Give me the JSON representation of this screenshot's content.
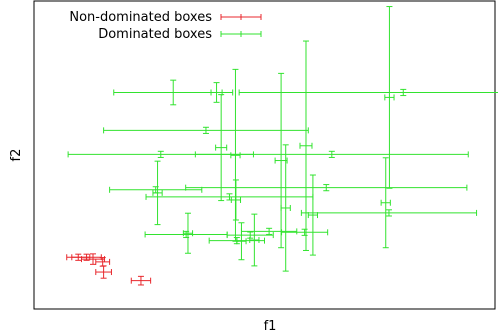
{
  "chart_data": {
    "type": "scatter",
    "xlabel": "f1",
    "ylabel": "f2",
    "xlim": [
      0,
      100
    ],
    "ylim": [
      0,
      100
    ],
    "grid": false,
    "legend_placement": "top-left",
    "series": [
      {
        "name": "Non-dominated boxes",
        "color": "#e8272c",
        "boxes": [
          {
            "x": 9.6,
            "xerr": 2.5,
            "y": 16.8,
            "yerr": 1.0
          },
          {
            "x": 11.4,
            "xerr": 3.2,
            "y": 16.8,
            "yerr": 1.0
          },
          {
            "x": 12.8,
            "xerr": 2.5,
            "y": 16.2,
            "yerr": 1.7
          },
          {
            "x": 14.9,
            "xerr": 1.5,
            "y": 15.3,
            "yerr": 1.4
          },
          {
            "x": 15.1,
            "xerr": 1.7,
            "y": 12.0,
            "yerr": 2.0
          },
          {
            "x": 23.2,
            "xerr": 2.1,
            "y": 9.2,
            "yerr": 1.4
          }
        ]
      },
      {
        "name": "Dominated boxes",
        "color": "#32e32f",
        "boxes": [
          {
            "x": 30.2,
            "xerr": 12.9,
            "y": 70.3,
            "yerr": 4.0
          },
          {
            "x": 39.6,
            "xerr": 1.2,
            "y": 70.3,
            "yerr": 3.2
          },
          {
            "x": 37.3,
            "xerr": 22.2,
            "y": 58.0,
            "yerr": 1.0
          },
          {
            "x": 27.5,
            "xerr": 20.1,
            "y": 50.2,
            "yerr": 1.0
          },
          {
            "x": 43.7,
            "xerr": 1.0,
            "y": 49.9,
            "yerr": 27.9
          },
          {
            "x": 40.6,
            "xerr": 1.2,
            "y": 52.4,
            "yerr": 17.2
          },
          {
            "x": 53.6,
            "xerr": 1.3,
            "y": 48.2,
            "yerr": 28.3
          },
          {
            "x": 59.0,
            "xerr": 1.3,
            "y": 53.0,
            "yerr": 34.0
          },
          {
            "x": 77.1,
            "xerr": 1.0,
            "y": 68.7,
            "yerr": 29.5
          },
          {
            "x": 80.1,
            "xerr": 35.6,
            "y": 70.3,
            "yerr": 1.0
          },
          {
            "x": 64.6,
            "xerr": 29.6,
            "y": 50.2,
            "yerr": 1.0
          },
          {
            "x": 26.8,
            "xerr": 1.0,
            "y": 37.7,
            "yerr": 10.3
          },
          {
            "x": 26.4,
            "xerr": 10.0,
            "y": 38.7,
            "yerr": 1.0
          },
          {
            "x": 42.4,
            "xerr": 18.1,
            "y": 36.4,
            "yerr": 1.0
          },
          {
            "x": 63.4,
            "xerr": 30.5,
            "y": 39.4,
            "yerr": 1.0
          },
          {
            "x": 76.3,
            "xerr": 1.0,
            "y": 34.5,
            "yerr": 14.6
          },
          {
            "x": 77.0,
            "xerr": 19.0,
            "y": 31.2,
            "yerr": 1.0
          },
          {
            "x": 43.8,
            "xerr": 1.0,
            "y": 35.4,
            "yerr": 6.5
          },
          {
            "x": 33.4,
            "xerr": 1.0,
            "y": 24.6,
            "yerr": 6.5
          },
          {
            "x": 33.0,
            "xerr": 8.9,
            "y": 24.2,
            "yerr": 1.0
          },
          {
            "x": 44.0,
            "xerr": 6.0,
            "y": 22.2,
            "yerr": 1.0
          },
          {
            "x": 45.0,
            "xerr": 1.0,
            "y": 22.0,
            "yerr": 6.0
          },
          {
            "x": 46.9,
            "xerr": 5.0,
            "y": 24.0,
            "yerr": 1.0
          },
          {
            "x": 47.8,
            "xerr": 1.0,
            "y": 22.4,
            "yerr": 8.4
          },
          {
            "x": 51.0,
            "xerr": 6.0,
            "y": 25.2,
            "yerr": 1.0
          },
          {
            "x": 54.6,
            "xerr": 1.0,
            "y": 32.8,
            "yerr": 20.5
          },
          {
            "x": 60.5,
            "xerr": 1.0,
            "y": 30.5,
            "yerr": 13.0
          },
          {
            "x": 58.7,
            "xerr": 5.0,
            "y": 24.9,
            "yerr": 1.0
          }
        ]
      }
    ]
  }
}
